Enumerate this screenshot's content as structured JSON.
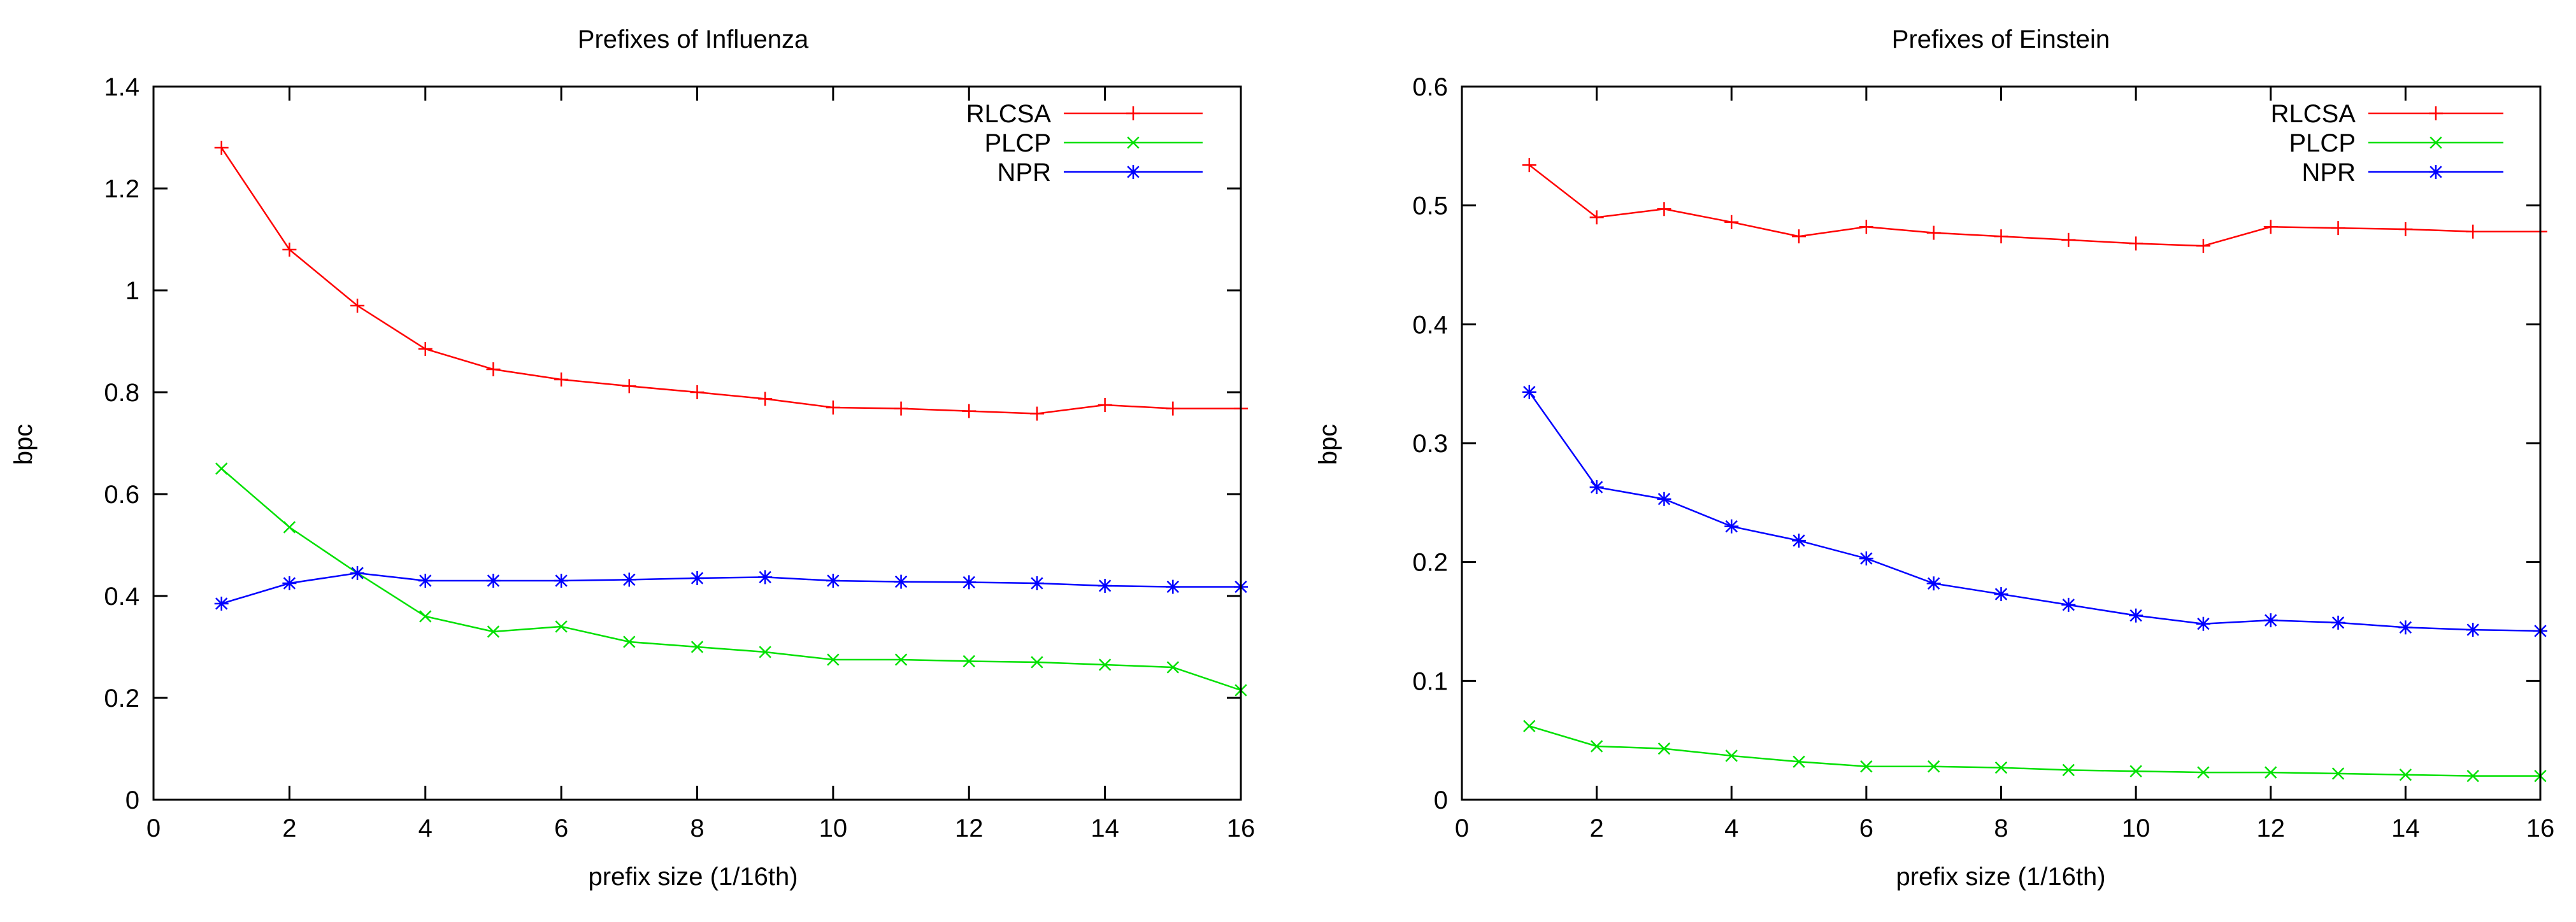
{
  "chart_data": [
    {
      "type": "line",
      "title": "Prefixes of Influenza",
      "xlabel": "prefix size (1/16th)",
      "ylabel": "bpc",
      "xlim": [
        0,
        16
      ],
      "ylim": [
        0,
        1.4
      ],
      "x_ticks": [
        0,
        2,
        4,
        6,
        8,
        10,
        12,
        14,
        16
      ],
      "x_tick_labels": [
        "0",
        "2",
        "4",
        "6",
        "8",
        "10",
        "12",
        "14",
        "16"
      ],
      "y_ticks": [
        0,
        0.2,
        0.4,
        0.6,
        0.8,
        1.0,
        1.2,
        1.4
      ],
      "y_tick_labels": [
        "0",
        "0.2",
        "0.4",
        "0.6",
        "0.8",
        "1",
        "1.2",
        "1.4"
      ],
      "legend_position": "top-right",
      "x": [
        1,
        2,
        3,
        4,
        5,
        6,
        7,
        8,
        9,
        10,
        11,
        12,
        13,
        14,
        15,
        16
      ],
      "series": [
        {
          "name": "RLCSA",
          "color": "#ff0000",
          "marker": "plus",
          "values": [
            1.28,
            1.08,
            0.97,
            0.885,
            0.845,
            0.825,
            0.812,
            0.8,
            0.787,
            0.77,
            0.768,
            0.763,
            0.758,
            0.775,
            0.768,
            0.768
          ]
        },
        {
          "name": "PLCP",
          "color": "#00e000",
          "marker": "cross",
          "values": [
            0.65,
            0.535,
            0.445,
            0.36,
            0.33,
            0.34,
            0.31,
            0.3,
            0.29,
            0.275,
            0.275,
            0.272,
            0.27,
            0.265,
            0.26,
            0.215
          ]
        },
        {
          "name": "NPR",
          "color": "#0000ff",
          "marker": "star",
          "values": [
            0.385,
            0.425,
            0.445,
            0.43,
            0.43,
            0.43,
            0.432,
            0.435,
            0.437,
            0.43,
            0.428,
            0.427,
            0.425,
            0.42,
            0.418,
            0.418
          ]
        }
      ]
    },
    {
      "type": "line",
      "title": "Prefixes of Einstein",
      "xlabel": "prefix size (1/16th)",
      "ylabel": "bpc",
      "xlim": [
        0,
        16
      ],
      "ylim": [
        0,
        0.6
      ],
      "x_ticks": [
        0,
        2,
        4,
        6,
        8,
        10,
        12,
        14,
        16
      ],
      "x_tick_labels": [
        "0",
        "2",
        "4",
        "6",
        "8",
        "10",
        "12",
        "14",
        "16"
      ],
      "y_ticks": [
        0,
        0.1,
        0.2,
        0.3,
        0.4,
        0.5,
        0.6
      ],
      "y_tick_labels": [
        "0",
        "0.1",
        "0.2",
        "0.3",
        "0.4",
        "0.5",
        "0.6"
      ],
      "legend_position": "top-right",
      "x": [
        1,
        2,
        3,
        4,
        5,
        6,
        7,
        8,
        9,
        10,
        11,
        12,
        13,
        14,
        15,
        16
      ],
      "series": [
        {
          "name": "RLCSA",
          "color": "#ff0000",
          "marker": "plus",
          "values": [
            0.534,
            0.49,
            0.497,
            0.486,
            0.474,
            0.482,
            0.477,
            0.474,
            0.471,
            0.468,
            0.466,
            0.482,
            0.481,
            0.48,
            0.478,
            0.478
          ]
        },
        {
          "name": "PLCP",
          "color": "#00e000",
          "marker": "cross",
          "values": [
            0.062,
            0.045,
            0.043,
            0.037,
            0.032,
            0.028,
            0.028,
            0.027,
            0.025,
            0.024,
            0.023,
            0.023,
            0.022,
            0.021,
            0.02,
            0.02
          ]
        },
        {
          "name": "NPR",
          "color": "#0000ff",
          "marker": "star",
          "values": [
            0.343,
            0.263,
            0.253,
            0.23,
            0.218,
            0.203,
            0.182,
            0.173,
            0.164,
            0.155,
            0.148,
            0.151,
            0.149,
            0.145,
            0.143,
            0.142
          ]
        }
      ]
    }
  ]
}
